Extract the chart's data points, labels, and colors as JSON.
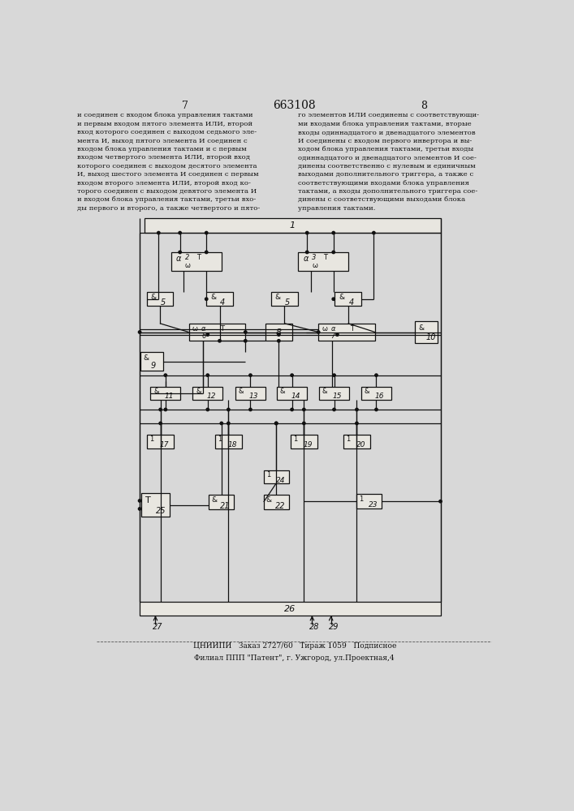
{
  "page_bg": "#d8d8d8",
  "paper_bg": "#e8e6e0",
  "box_fill": "#e8e6e0",
  "line_color": "#111111",
  "text_color": "#111111",
  "title": "663108",
  "page_left": "7",
  "page_right": "8",
  "text_left": "и соединен с входом блока управления тактами\nи первым входом пятого элемента ИЛИ, второй\nвход которого соединен с выходом седьмого эле-\nмента И, выход пятого элемента И соединен с\nвходом блока управления тактами и с первым\nвходом четвертого элемента ИЛИ, второй вход\nкоторого соединен с выходом десятого элемента\nИ, выход шестого элемента И соединен с первым\nвходом второго элемента ИЛИ, второй вход ко-\nторого соединен с выходом девятого элемента И\nи входом блока управления тактами, третьи вхо-\nды первого и второго, а также четвертого и пято-",
  "text_right": "го элементов ИЛИ соединены с соответствующи-\nми входами блока управления тактами, вторые\nвходы одиннадцатого и двенадцатого элементов\nИ соединены с входом первого инвертора и вы-\nходом блока управления тактами, третьи входы\nодиннадцатого и двенадцатого элементов И сое-\nдинены соответственно с нулевым и единичным\nвыходами дополнительного триггера, а также с\nсоответствующими входами блока управления\nтактами, а входы дополнительного триггера сое-\nдинены с соответствующими выходами блока\nуправления тактами.",
  "footer1": "ЦНИИПИ   Заказ 2727/60   Тираж 1059   Подписное",
  "footer2": "Филиал ППП \"Патент\", г. Ужгород, ул.Проектная,4",
  "num5": "5",
  "num10": "10"
}
